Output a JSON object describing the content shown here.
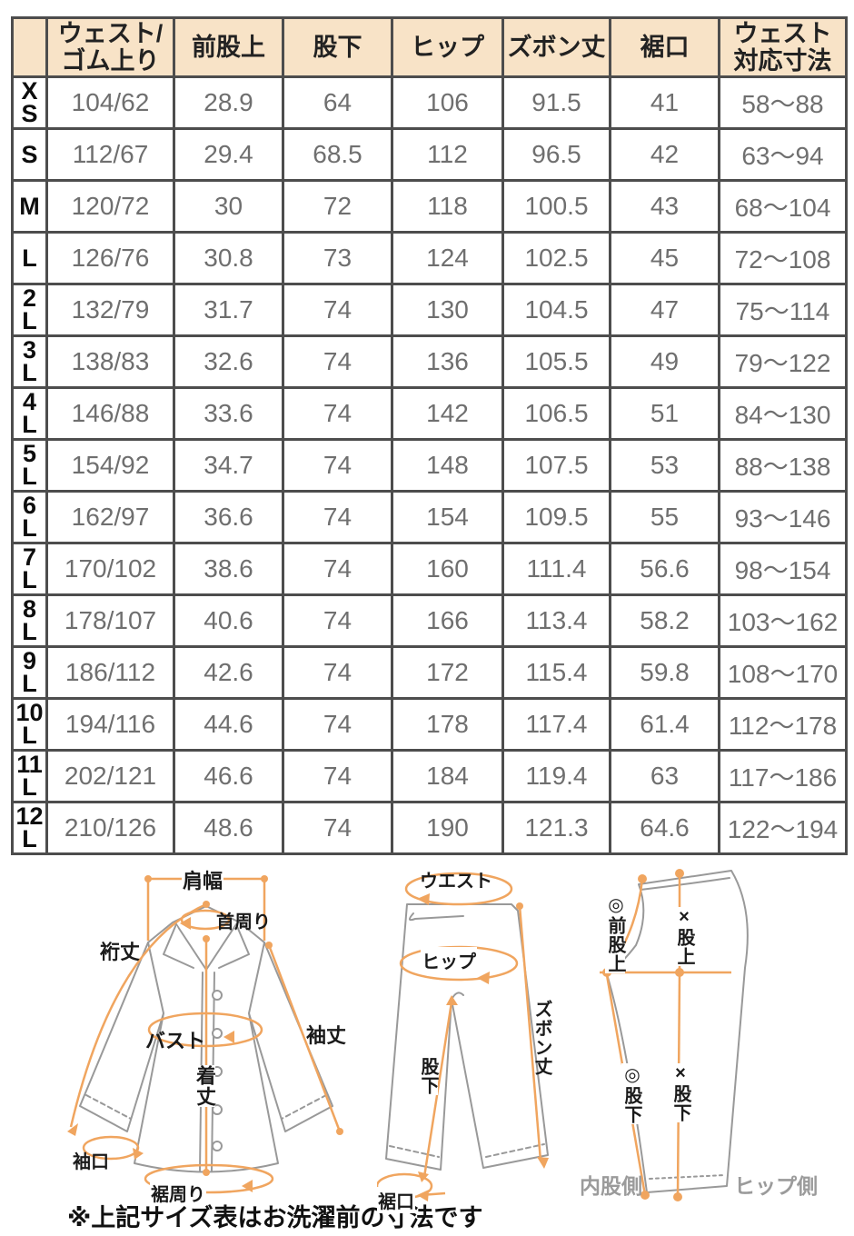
{
  "table": {
    "columns": [
      "",
      "ウェスト/\nゴム上り",
      "前股上",
      "股下",
      "ヒップ",
      "ズボン丈",
      "裾口",
      "ウェスト\n対応寸法"
    ],
    "rows": [
      [
        "X\nS",
        "104/62",
        "28.9",
        "64",
        "106",
        "91.5",
        "41",
        "58〜88"
      ],
      [
        "S",
        "112/67",
        "29.4",
        "68.5",
        "112",
        "96.5",
        "42",
        "63〜94"
      ],
      [
        "M",
        "120/72",
        "30",
        "72",
        "118",
        "100.5",
        "43",
        "68〜104"
      ],
      [
        "L",
        "126/76",
        "30.8",
        "73",
        "124",
        "102.5",
        "45",
        "72〜108"
      ],
      [
        "2\nL",
        "132/79",
        "31.7",
        "74",
        "130",
        "104.5",
        "47",
        "75〜114"
      ],
      [
        "3\nL",
        "138/83",
        "32.6",
        "74",
        "136",
        "105.5",
        "49",
        "79〜122"
      ],
      [
        "4\nL",
        "146/88",
        "33.6",
        "74",
        "142",
        "106.5",
        "51",
        "84〜130"
      ],
      [
        "5\nL",
        "154/92",
        "34.7",
        "74",
        "148",
        "107.5",
        "53",
        "88〜138"
      ],
      [
        "6\nL",
        "162/97",
        "36.6",
        "74",
        "154",
        "109.5",
        "55",
        "93〜146"
      ],
      [
        "7\nL",
        "170/102",
        "38.6",
        "74",
        "160",
        "111.4",
        "56.6",
        "98〜154"
      ],
      [
        "8\nL",
        "178/107",
        "40.6",
        "74",
        "166",
        "113.4",
        "58.2",
        "103〜162"
      ],
      [
        "9\nL",
        "186/112",
        "42.6",
        "74",
        "172",
        "115.4",
        "59.8",
        "108〜170"
      ],
      [
        "10\nL",
        "194/116",
        "44.6",
        "74",
        "178",
        "117.4",
        "61.4",
        "112〜178"
      ],
      [
        "11\nL",
        "202/121",
        "46.6",
        "74",
        "184",
        "119.4",
        "63",
        "117〜186"
      ],
      [
        "12\nL",
        "210/126",
        "48.6",
        "74",
        "190",
        "121.3",
        "64.6",
        "122〜194"
      ]
    ]
  },
  "diagrams": {
    "shirt": {
      "labels": {
        "shoulder": "肩幅",
        "neck": "首周り",
        "yuki": "裄丈",
        "bust": "バスト",
        "sleeve": "袖丈",
        "body_length": "着丈",
        "cuff": "袖口",
        "hem_around": "裾周り"
      }
    },
    "pants_front": {
      "labels": {
        "waist": "ウエスト",
        "hip": "ヒップ",
        "pants_length": "ズボン丈",
        "inseam": "股下",
        "hem": "裾口"
      }
    },
    "pants_side": {
      "labels": {
        "front_rise": "◎前股上",
        "rise": "×股上",
        "inseam_a": "◎股下",
        "inseam_b": "×股下",
        "inner_side": "内股側",
        "hip_side": "ヒップ側"
      }
    }
  },
  "note": "※上記サイズ表はお洗濯前の寸法です",
  "colors": {
    "header_bg": "#f8e3c7",
    "table_border": "#4d4d4d",
    "value_text": "#6f6f6f",
    "accent_orange": "#f0a55f",
    "garment_outline": "#999999",
    "side_label_gray": "#9b9b9b"
  }
}
